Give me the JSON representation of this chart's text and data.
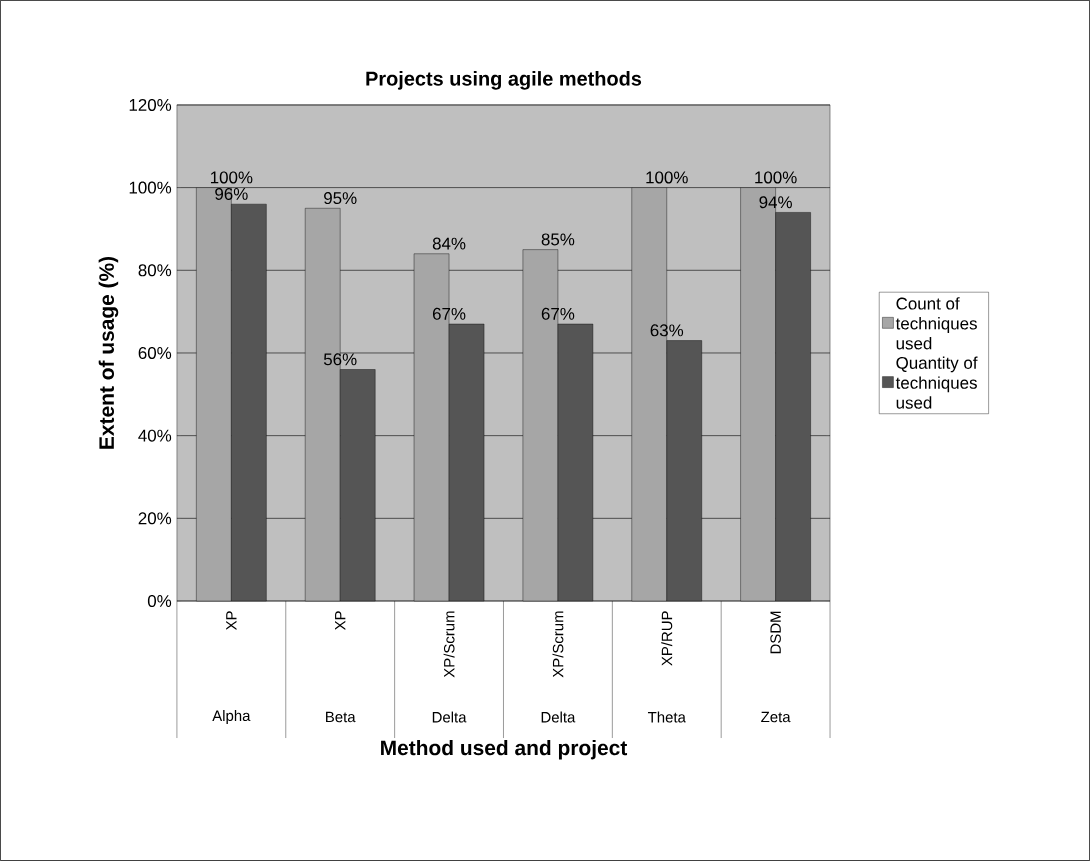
{
  "chart_data": {
    "type": "bar",
    "title": "Projects using agile methods",
    "xlabel": "Method used and project",
    "ylabel": "Extent of usage (%)",
    "categories": [
      "Alpha",
      "Beta",
      "Delta",
      "Delta",
      "Theta",
      "Zeta"
    ],
    "annotations": [
      "XP",
      "XP",
      "XP/Scrum",
      "XP/Scrum",
      "XP/RUP",
      "DSDM"
    ],
    "series": [
      {
        "name": "Count of techniques used",
        "color": "#a6a6a6",
        "values": [
          100,
          95,
          84,
          85,
          100,
          100
        ],
        "value_labels": [
          "100%",
          "95%",
          "84%",
          "85%",
          "100%",
          "100%"
        ]
      },
      {
        "name": "Quantity of techniques used",
        "color": "#555555",
        "values": [
          96,
          56,
          67,
          67,
          63,
          94
        ],
        "value_labels": [
          "96%",
          "56%",
          "67%",
          "67%",
          "63%",
          "94%"
        ]
      }
    ],
    "ylim": [
      0,
      120
    ],
    "yticks": [
      {
        "value": 0,
        "label": "0%"
      },
      {
        "value": 20,
        "label": "20%"
      },
      {
        "value": 40,
        "label": "40%"
      },
      {
        "value": 60,
        "label": "60%"
      },
      {
        "value": 80,
        "label": "80%"
      },
      {
        "value": 100,
        "label": "100%"
      },
      {
        "value": 120,
        "label": "120%"
      }
    ],
    "grid": "y",
    "legend": "right"
  }
}
